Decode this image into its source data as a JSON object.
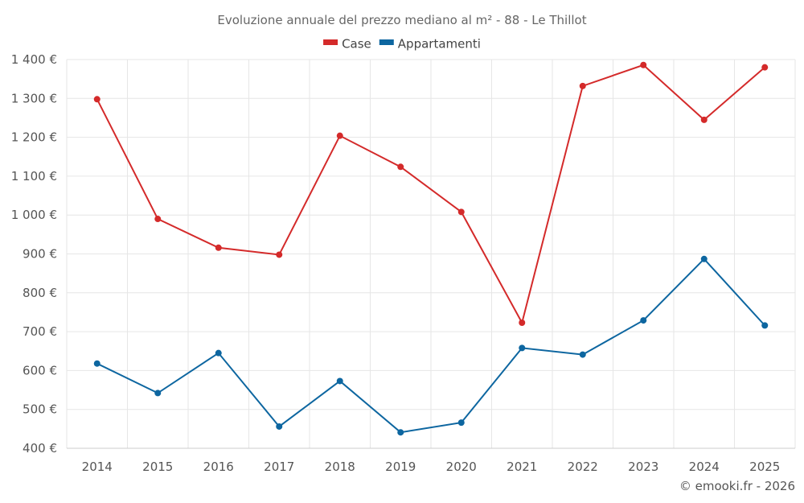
{
  "chart_data": {
    "type": "line",
    "title": "Evoluzione annuale del prezzo mediano al m² - 88 - Le Thillot",
    "xlabel": "",
    "ylabel": "",
    "categories": [
      "2014",
      "2015",
      "2016",
      "2017",
      "2018",
      "2019",
      "2020",
      "2021",
      "2022",
      "2023",
      "2024",
      "2025"
    ],
    "ylim": [
      400,
      1400
    ],
    "yticks": [
      400,
      500,
      600,
      700,
      800,
      900,
      1000,
      1100,
      1200,
      1300,
      1400
    ],
    "ytick_labels": [
      "400 €",
      "500 €",
      "600 €",
      "700 €",
      "800 €",
      "900 €",
      "1 000 €",
      "1 100 €",
      "1 200 €",
      "1 300 €",
      "1 400 €"
    ],
    "grid": true,
    "legend_position": "top-center",
    "series": [
      {
        "name": "Case",
        "color": "#d42a2a",
        "values": [
          1298,
          990,
          916,
          898,
          1204,
          1124,
          1008,
          723,
          1332,
          1386,
          1245,
          1380
        ]
      },
      {
        "name": "Appartamenti",
        "color": "#0d66a0",
        "values": [
          618,
          542,
          645,
          456,
          573,
          441,
          466,
          658,
          641,
          729,
          887,
          716
        ]
      }
    ],
    "credit": "© emooki.fr - 2026"
  }
}
